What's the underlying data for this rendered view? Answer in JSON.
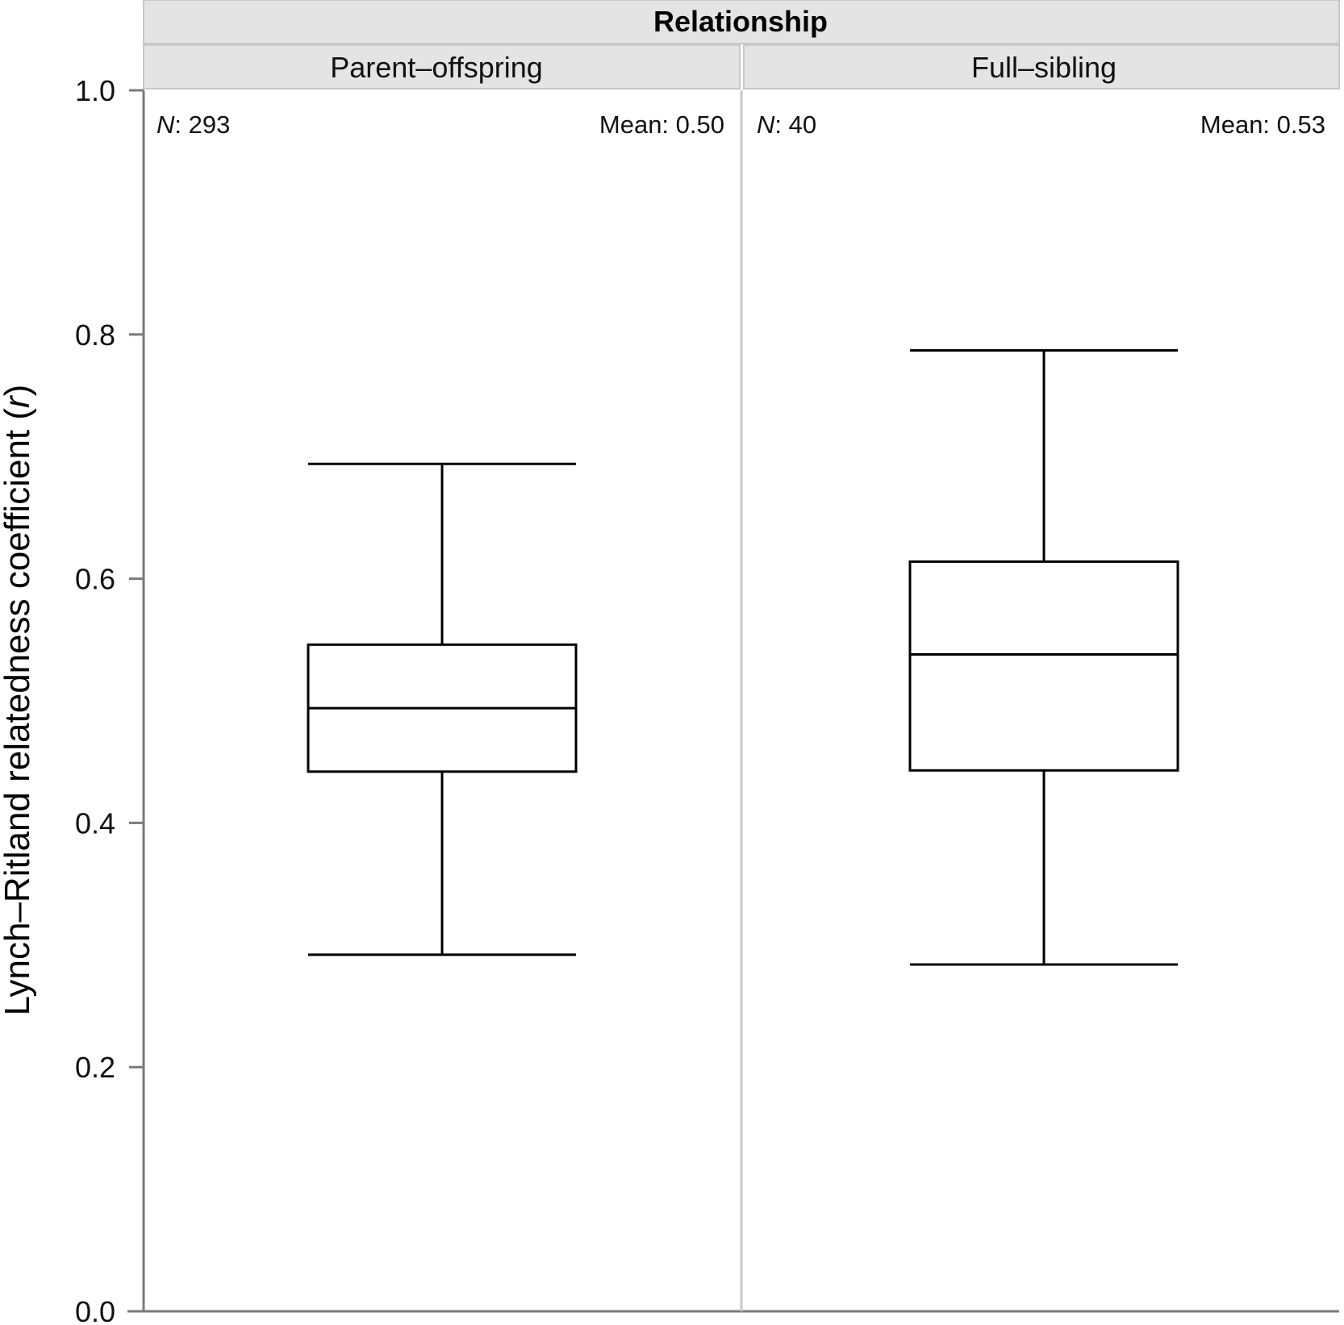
{
  "chart_data": {
    "type": "boxplot",
    "facet_title": "Relationship",
    "ylabel": "Lynch–Ritland relatedness coefficient (",
    "ylabel_italic": "r",
    "ylabel_suffix": ")",
    "ylim": [
      0,
      1.0
    ],
    "yticks": [
      0.0,
      0.2,
      0.4,
      0.6,
      0.8,
      1.0
    ],
    "ytick_labels": [
      "0.0",
      "0.2",
      "0.4",
      "0.6",
      "0.8",
      "1.0"
    ],
    "panels": [
      {
        "name": "Parent–offspring",
        "n_label": "N",
        "n_value": ": 293",
        "mean_text": "Mean: 0.50",
        "whisker_low": 0.292,
        "q1": 0.442,
        "median": 0.494,
        "q3": 0.546,
        "whisker_high": 0.694
      },
      {
        "name": "Full–sibling",
        "n_label": "N",
        "n_value": ": 40",
        "mean_text": "Mean: 0.53",
        "whisker_low": 0.284,
        "q1": 0.443,
        "median": 0.538,
        "q3": 0.614,
        "whisker_high": 0.787
      }
    ]
  }
}
